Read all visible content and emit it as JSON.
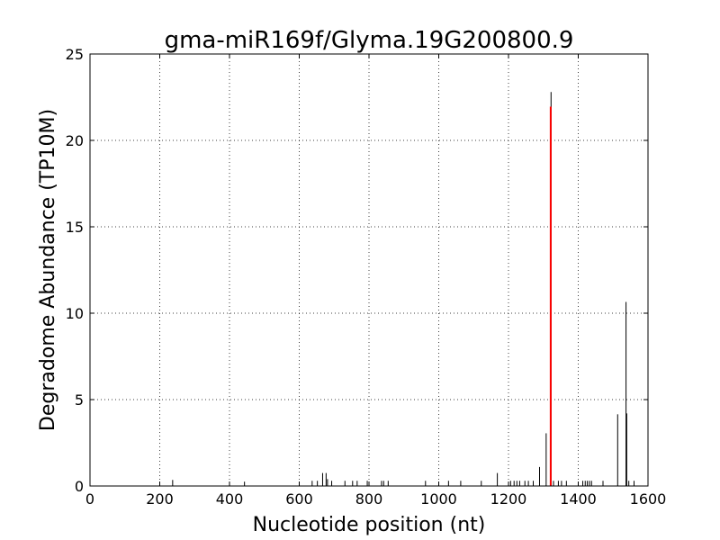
{
  "chart_data": {
    "type": "bar",
    "title": "gma-miR169f/Glyma.19G200800.9",
    "xlabel": "Nucleotide position (nt)",
    "ylabel": "Degradome Abundance (TP10M)",
    "xlim": [
      0,
      1600
    ],
    "ylim": [
      0,
      25
    ],
    "xticks": [
      0,
      200,
      400,
      600,
      800,
      1000,
      1200,
      1400,
      1600
    ],
    "yticks": [
      0,
      5,
      10,
      15,
      20,
      25
    ],
    "grid": true,
    "series": [
      {
        "color": "#000000",
        "points": [
          {
            "x": 237,
            "y": 0.35
          },
          {
            "x": 443,
            "y": 0.25
          },
          {
            "x": 637,
            "y": 0.3
          },
          {
            "x": 652,
            "y": 0.3
          },
          {
            "x": 667,
            "y": 0.75
          },
          {
            "x": 677,
            "y": 0.75
          },
          {
            "x": 681,
            "y": 0.4
          },
          {
            "x": 693,
            "y": 0.3
          },
          {
            "x": 731,
            "y": 0.3
          },
          {
            "x": 753,
            "y": 0.3
          },
          {
            "x": 766,
            "y": 0.3
          },
          {
            "x": 795,
            "y": 0.3
          },
          {
            "x": 836,
            "y": 0.3
          },
          {
            "x": 842,
            "y": 0.3
          },
          {
            "x": 855,
            "y": 0.3
          },
          {
            "x": 962,
            "y": 0.3
          },
          {
            "x": 1028,
            "y": 0.3
          },
          {
            "x": 1063,
            "y": 0.3
          },
          {
            "x": 1122,
            "y": 0.3
          },
          {
            "x": 1168,
            "y": 0.75
          },
          {
            "x": 1206,
            "y": 0.3
          },
          {
            "x": 1216,
            "y": 0.3
          },
          {
            "x": 1224,
            "y": 0.3
          },
          {
            "x": 1232,
            "y": 0.3
          },
          {
            "x": 1247,
            "y": 0.3
          },
          {
            "x": 1257,
            "y": 0.3
          },
          {
            "x": 1271,
            "y": 0.3
          },
          {
            "x": 1289,
            "y": 1.1
          },
          {
            "x": 1308,
            "y": 3.05
          },
          {
            "x": 1322,
            "y": 22.8
          },
          {
            "x": 1329,
            "y": 0.3
          },
          {
            "x": 1343,
            "y": 0.3
          },
          {
            "x": 1352,
            "y": 0.3
          },
          {
            "x": 1366,
            "y": 0.3
          },
          {
            "x": 1413,
            "y": 0.3
          },
          {
            "x": 1420,
            "y": 0.3
          },
          {
            "x": 1426,
            "y": 0.3
          },
          {
            "x": 1432,
            "y": 0.3
          },
          {
            "x": 1438,
            "y": 0.3
          },
          {
            "x": 1471,
            "y": 0.3
          },
          {
            "x": 1513,
            "y": 4.15
          },
          {
            "x": 1537,
            "y": 10.65
          },
          {
            "x": 1539,
            "y": 4.2
          },
          {
            "x": 1545,
            "y": 0.3
          },
          {
            "x": 1560,
            "y": 0.3
          }
        ]
      },
      {
        "color": "#ff0000",
        "points": [
          {
            "x": 1321,
            "y": 21.95
          }
        ]
      }
    ]
  }
}
